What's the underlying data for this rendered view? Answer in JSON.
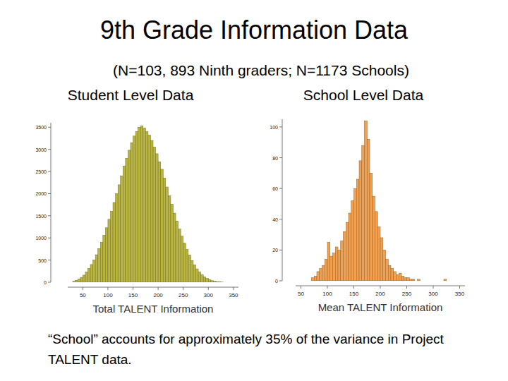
{
  "slide": {
    "title": "9th Grade Information Data",
    "subtitle": "(N=103, 893 Ninth graders; N=1173 Schools)",
    "note": "“School” accounts for approximately 35% of the variance in Project TALENT data."
  },
  "chart_data": [
    {
      "type": "histogram",
      "title": "Student Level Data",
      "x_label": "Total TALENT Information",
      "color": "#b9b540",
      "bins": [
        30,
        35,
        40,
        45,
        50,
        55,
        60,
        65,
        70,
        75,
        80,
        85,
        90,
        95,
        100,
        105,
        110,
        115,
        120,
        125,
        130,
        135,
        140,
        145,
        150,
        155,
        160,
        165,
        170,
        175,
        180,
        185,
        190,
        195,
        200,
        205,
        210,
        215,
        220,
        225,
        230,
        235,
        240,
        245,
        250,
        255,
        260,
        265,
        270,
        275,
        280,
        285,
        290,
        295,
        300,
        305,
        310,
        315,
        320,
        325,
        330
      ],
      "values": [
        20,
        40,
        70,
        110,
        160,
        230,
        310,
        400,
        500,
        620,
        760,
        900,
        1060,
        1230,
        1420,
        1600,
        1800,
        2000,
        2200,
        2400,
        2620,
        2800,
        2980,
        3150,
        3300,
        3400,
        3500,
        3530,
        3480,
        3400,
        3320,
        3200,
        3050,
        2900,
        2720,
        2550,
        2350,
        2150,
        1950,
        1760,
        1560,
        1380,
        1200,
        1040,
        880,
        740,
        610,
        490,
        390,
        300,
        230,
        170,
        120,
        85,
        55,
        35,
        20,
        12,
        6,
        3
      ],
      "xlim": [
        20,
        360
      ],
      "ylim": [
        0,
        3600
      ],
      "xticks": [
        50,
        100,
        150,
        200,
        250,
        300,
        350
      ],
      "yticks": [
        0,
        500,
        1000,
        1500,
        2000,
        2500,
        3000,
        3500
      ]
    },
    {
      "type": "histogram",
      "title": "School Level Data",
      "x_label": "Mean TALENT Information",
      "color": "#f0a04e",
      "bins": [
        70,
        75,
        80,
        85,
        90,
        95,
        100,
        105,
        110,
        115,
        120,
        125,
        130,
        135,
        140,
        145,
        150,
        155,
        160,
        165,
        170,
        175,
        180,
        185,
        190,
        195,
        200,
        205,
        210,
        215,
        220,
        225,
        230,
        235,
        240,
        245,
        250,
        255,
        260,
        265,
        270,
        275,
        280,
        285,
        290,
        295,
        300,
        305,
        310,
        315,
        320,
        325
      ],
      "values": [
        2,
        3,
        6,
        8,
        10,
        14,
        25,
        16,
        18,
        22,
        20,
        26,
        32,
        38,
        44,
        52,
        60,
        66,
        78,
        88,
        104,
        92,
        70,
        55,
        45,
        35,
        28,
        20,
        14,
        10,
        8,
        6,
        4,
        5,
        3,
        2,
        2,
        1,
        1,
        0,
        1,
        0,
        0,
        0,
        0,
        0,
        0,
        0,
        0,
        0,
        1
      ],
      "xlim": [
        40,
        360
      ],
      "ylim": [
        0,
        105
      ],
      "xticks": [
        50,
        100,
        150,
        200,
        250,
        300,
        350
      ],
      "yticks": [
        0,
        20,
        40,
        60,
        80,
        100
      ]
    }
  ]
}
